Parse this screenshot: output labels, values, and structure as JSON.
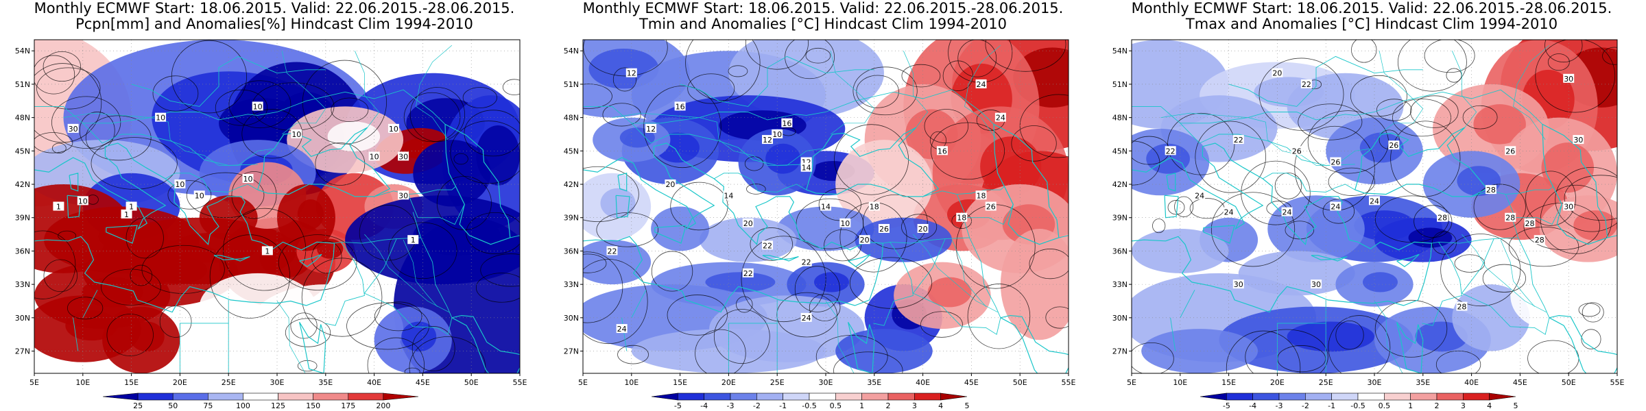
{
  "panels": [
    {
      "title_line1": "Monthly ECMWF Start: 18.06.2015. Valid: 22.06.2015.-28.06.2015.",
      "title_line2": "Pcpn[mm] and Anomalies[%] Hindcast Clim 1994-2010",
      "colorbar": {
        "labels": [
          "25",
          "50",
          "75",
          "100",
          "125",
          "150",
          "175",
          "200"
        ],
        "colors": [
          "#0000a0",
          "#1f2fd8",
          "#5a6ee8",
          "#a9b6f2",
          "#ffffff",
          "#f7c4c4",
          "#f08a8a",
          "#e23a3a",
          "#b00000"
        ]
      },
      "contour_labels": [
        "10",
        "10",
        "10",
        "10",
        "10",
        "10",
        "10",
        "10",
        "10",
        "30",
        "30",
        "30",
        "1",
        "1",
        "1",
        "1",
        "1"
      ]
    },
    {
      "title_line1": "Monthly ECMWF Start: 18.06.2015. Valid: 22.06.2015.-28.06.2015.",
      "title_line2": "Tmin and Anomalies [°C] Hindcast Clim 1994-2010",
      "colorbar": {
        "labels": [
          "-5",
          "-4",
          "-3",
          "-2",
          "-1",
          "-0.5",
          "0.5",
          "1",
          "2",
          "3",
          "4",
          "5"
        ],
        "colors": [
          "#0000a0",
          "#1f2fd8",
          "#3d55e0",
          "#6c82ea",
          "#a2b0f2",
          "#cfd6f8",
          "#ffffff",
          "#f8d0d0",
          "#f3a0a0",
          "#ea6262",
          "#d92020",
          "#a80000"
        ]
      },
      "contour_labels": [
        "12",
        "12",
        "12",
        "12",
        "14",
        "14",
        "14",
        "16",
        "16",
        "16",
        "18",
        "18",
        "18",
        "20",
        "20",
        "20",
        "20",
        "22",
        "22",
        "22",
        "22",
        "24",
        "24",
        "24",
        "24",
        "26",
        "26",
        "10",
        "10"
      ]
    },
    {
      "title_line1": "Monthly ECMWF Start: 18.06.2015. Valid: 22.06.2015.-28.06.2015.",
      "title_line2": "Tmax and Anomalies [°C] Hindcast Clim 1994-2010",
      "colorbar": {
        "labels": [
          "-5",
          "-4",
          "-3",
          "-2",
          "-1",
          "-0.5",
          "0.5",
          "1",
          "2",
          "3",
          "4",
          "5"
        ],
        "colors": [
          "#0000a0",
          "#1f2fd8",
          "#3d55e0",
          "#6c82ea",
          "#a2b0f2",
          "#cfd6f8",
          "#ffffff",
          "#f8d0d0",
          "#f3a0a0",
          "#ea6262",
          "#d92020",
          "#a80000"
        ]
      },
      "contour_labels": [
        "20",
        "22",
        "22",
        "22",
        "24",
        "24",
        "24",
        "24",
        "24",
        "26",
        "26",
        "26",
        "26",
        "28",
        "28",
        "28",
        "28",
        "28",
        "28",
        "30",
        "30",
        "30",
        "30",
        "30"
      ]
    }
  ],
  "map_axes": {
    "lat_labels": [
      "54N",
      "51N",
      "48N",
      "45N",
      "42N",
      "39N",
      "36N",
      "33N",
      "30N",
      "27N"
    ],
    "lon_labels": [
      "5E",
      "10E",
      "15E",
      "20E",
      "25E",
      "30E",
      "35E",
      "40E",
      "45E",
      "50E",
      "55E"
    ]
  }
}
